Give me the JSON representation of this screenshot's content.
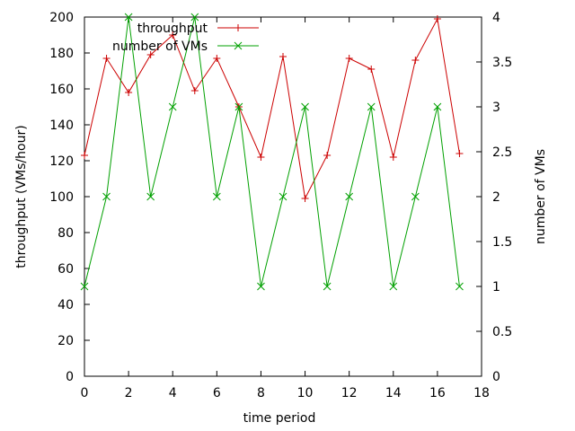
{
  "chart_data": {
    "type": "line",
    "xlabel": "time period",
    "ylabel": "throughput (VMs/hour)",
    "y2label": "number of VMs",
    "xlim": [
      0,
      18
    ],
    "ylim": [
      0,
      200
    ],
    "y2lim": [
      0,
      4
    ],
    "xticks": [
      0,
      2,
      4,
      6,
      8,
      10,
      12,
      14,
      16,
      18
    ],
    "yticks": [
      0,
      20,
      40,
      60,
      80,
      100,
      120,
      140,
      160,
      180,
      200
    ],
    "y2ticks": [
      0,
      0.5,
      1,
      1.5,
      2,
      2.5,
      3,
      3.5,
      4
    ],
    "grid": false,
    "legend_position": "top-center",
    "x": [
      0,
      1,
      2,
      3,
      4,
      5,
      6,
      7,
      8,
      9,
      10,
      11,
      12,
      13,
      14,
      15,
      16,
      17
    ],
    "series": [
      {
        "name": "throughput",
        "axis": "left",
        "color": "#cc0000",
        "marker": "plus",
        "values": [
          123,
          177,
          158,
          179,
          190,
          159,
          177,
          150,
          122,
          178,
          99,
          123,
          177,
          171,
          122,
          176,
          199,
          124
        ]
      },
      {
        "name": "number of VMs",
        "axis": "right",
        "color": "#00a000",
        "marker": "cross",
        "values": [
          1,
          2,
          4,
          2,
          3,
          4,
          2,
          3,
          1,
          2,
          3,
          1,
          2,
          3,
          1,
          2,
          3,
          1
        ]
      }
    ]
  }
}
